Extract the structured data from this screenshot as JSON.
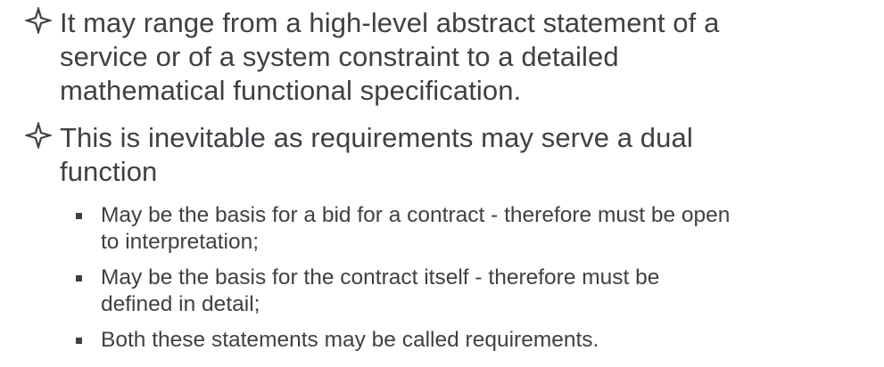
{
  "bullets": [
    {
      "icon": "four-point-star-icon",
      "text": "It may range from a high-level abstract statement of a\nservice or of a system constraint to a detailed\nmathematical functional specification."
    },
    {
      "icon": "four-point-star-icon",
      "text": "This is inevitable as requirements may serve a dual\nfunction"
    }
  ],
  "sub_bullets": [
    {
      "icon": "square-bullet-icon",
      "text": "May be the basis for a bid for a contract - therefore must be open\nto interpretation;"
    },
    {
      "icon": "square-bullet-icon",
      "text": "May be the basis for the contract itself - therefore must be\ndefined in detail;"
    },
    {
      "icon": "square-bullet-icon",
      "text": "Both these statements may be called requirements."
    }
  ],
  "colors": {
    "text": "#3f3f45",
    "background": "#ffffff"
  }
}
